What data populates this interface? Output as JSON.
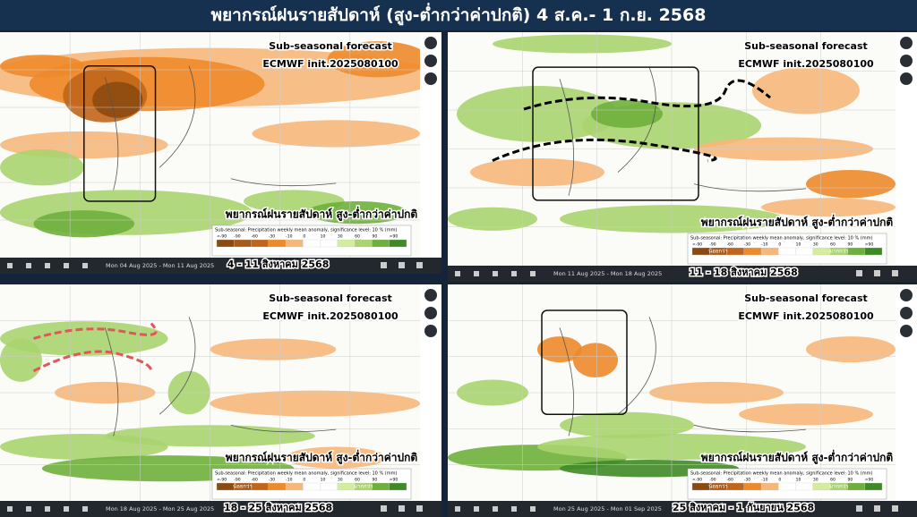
{
  "header": {
    "title": "พยากรณ์ฝนรายสัปดาห์ (สูง-ต่ำกว่าค่าปกติ)   4 ส.ค.- 1 ก.ย. 2568"
  },
  "panels": [
    {
      "forecast_title": "Sub-seasonal forecast",
      "init": "ECMWF init.2025080100",
      "caption": "พยากรณ์ฝนรายสัปดาห์ สูง-ต่ำกว่าค่าปกติ",
      "legend_title": "Sub-seasonal: Precipitation weekly mean anomaly, significance level: 10 % (mm)",
      "legend_ticks": [
        "<-90",
        "-90",
        "-60",
        "-30",
        "-10",
        "0",
        "10",
        "30",
        "60",
        "90",
        ">90"
      ],
      "date_range": "Mon 04 Aug 2025 - Mon 11 Aug 2025",
      "week_label": "4 - 11 สิงหาคม 2568"
    },
    {
      "forecast_title": "Sub-seasonal forecast",
      "init": "ECMWF init.2025080100",
      "caption": "พยากรณ์ฝนรายสัปดาห์ สูง-ต่ำกว่าค่าปกติ",
      "legend_title": "Sub-seasonal: Precipitation weekly mean anomaly, significance level: 10 % (mm)",
      "legend_ticks": [
        "<-90",
        "-90",
        "-60",
        "-30",
        "-10",
        "0",
        "10",
        "30",
        "60",
        "90",
        ">90"
      ],
      "legend_less": "น้อยกว่า",
      "legend_more": "มากกว่า",
      "date_range": "Mon 11 Aug 2025 - Mon 18 Aug 2025",
      "week_label": "11 - 18 สิงหาคม 2568"
    },
    {
      "forecast_title": "Sub-seasonal forecast",
      "init": "ECMWF init.2025080100",
      "caption": "พยากรณ์ฝนรายสัปดาห์ สูง-ต่ำกว่าค่าปกติ",
      "legend_title": "Sub-seasonal: Precipitation weekly mean anomaly, significance level: 10 % (mm)",
      "legend_ticks": [
        "<-90",
        "-90",
        "-60",
        "-30",
        "-10",
        "0",
        "10",
        "30",
        "60",
        "90",
        ">90"
      ],
      "legend_less": "น้อยกว่า",
      "legend_more": "มากกว่า",
      "date_range": "Mon 18 Aug 2025 - Mon 25 Aug 2025",
      "week_label": "18 - 25 สิงหาคม 2568"
    },
    {
      "forecast_title": "Sub-seasonal forecast",
      "init": "ECMWF init.2025080100",
      "caption": "พยากรณ์ฝนรายสัปดาห์ สูง-ต่ำกว่าค่าปกติ",
      "legend_title": "Sub-seasonal: Precipitation weekly mean anomaly, significance level: 10 % (mm)",
      "legend_ticks": [
        "<-90",
        "-90",
        "-60",
        "-30",
        "-10",
        "0",
        "10",
        "30",
        "60",
        "90",
        ">90"
      ],
      "legend_less": "น้อยกว่า",
      "legend_more": "มากกว่า",
      "date_range": "Mon 25 Aug 2025 - Mon 01 Sep 2025",
      "week_label": "25 สิงหาคม - 1 กันยายน 2568"
    }
  ]
}
